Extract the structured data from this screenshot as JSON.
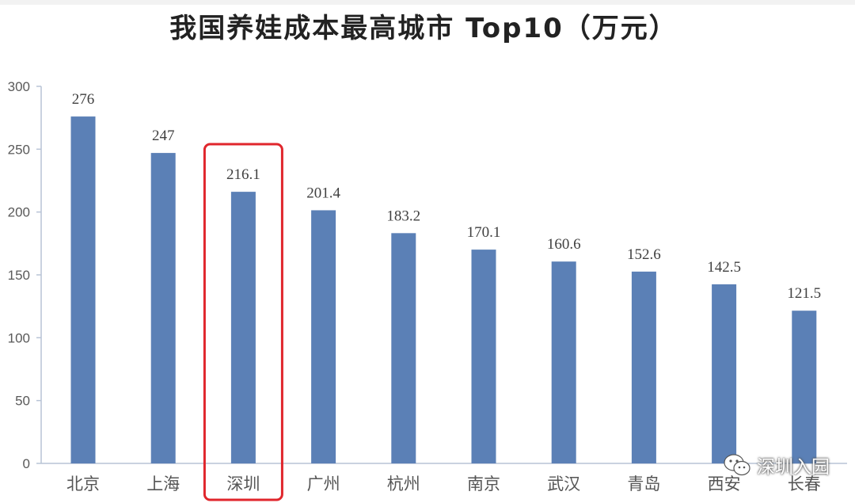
{
  "chart_data": {
    "type": "bar",
    "title": "我国养娃成本最高城市 Top10（万元）",
    "categories": [
      "北京",
      "上海",
      "深圳",
      "广州",
      "杭州",
      "南京",
      "武汉",
      "青岛",
      "西安",
      "长春"
    ],
    "values": [
      276,
      247,
      216.1,
      201.4,
      183.2,
      170.1,
      160.6,
      152.6,
      142.5,
      121.5
    ],
    "value_labels": [
      "276",
      "247",
      "216.1",
      "201.4",
      "183.2",
      "170.1",
      "160.6",
      "152.6",
      "142.5",
      "121.5"
    ],
    "yticks": [
      "0",
      "50",
      "100",
      "150",
      "200",
      "250",
      "300"
    ],
    "ylim": [
      0,
      300
    ],
    "xlabel": "",
    "ylabel": "",
    "grid": false,
    "highlighted_category": "深圳",
    "colors": {
      "bar": "#5b80b6",
      "highlight_box": "#e0262c",
      "axis": "#b8c4d6"
    }
  },
  "watermark": {
    "icon": "wechat-icon",
    "text": "深圳入园"
  }
}
